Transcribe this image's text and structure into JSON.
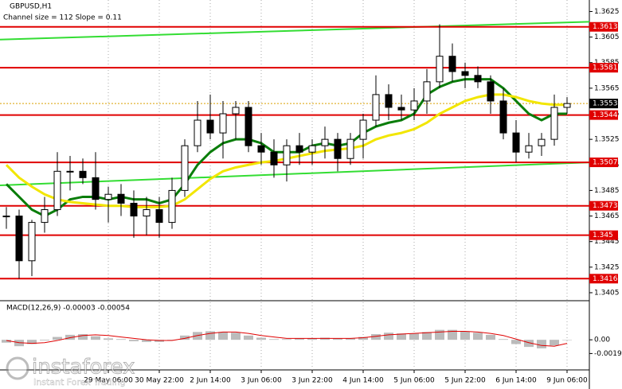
{
  "chart_data": {
    "type": "candlestick",
    "title": "GBPUSD,H1",
    "subtitle": "Channel size = 112 Slope = 0.11",
    "categories": [
      null,
      null,
      null,
      null,
      null,
      null,
      null,
      null,
      "29 May 06:00",
      null,
      null,
      null,
      "30 May 22:00",
      null,
      null,
      null,
      "2 Jun 14:00",
      null,
      null,
      null,
      "3 Jun 06:00",
      null,
      null,
      null,
      "3 Jun 22:00",
      null,
      null,
      null,
      "4 Jun 14:00",
      null,
      null,
      null,
      "5 Jun 06:00",
      null,
      null,
      null,
      "5 Jun 22:00",
      null,
      null,
      null,
      "6 Jun 14:00",
      null,
      null,
      null,
      "9 Jun 06:00"
    ],
    "open": [
      1.3465,
      1.3465,
      1.343,
      1.346,
      1.347,
      1.35,
      1.35,
      1.3495,
      1.3478,
      1.3482,
      1.3475,
      1.3465,
      1.347,
      1.346,
      1.3485,
      1.352,
      1.354,
      1.353,
      1.3545,
      1.355,
      1.352,
      1.3515,
      1.3505,
      1.352,
      1.3515,
      1.352,
      1.3525,
      1.351,
      1.3525,
      1.354,
      1.356,
      1.355,
      1.3548,
      1.3555,
      1.357,
      1.359,
      1.3578,
      1.3575,
      1.357,
      1.3555,
      1.353,
      1.3515,
      1.352,
      1.3525,
      1.355
    ],
    "high": [
      1.3472,
      1.347,
      1.3462,
      1.348,
      1.3515,
      1.3512,
      1.351,
      1.3515,
      1.3488,
      1.349,
      1.3485,
      1.348,
      1.348,
      1.3495,
      1.3525,
      1.3555,
      1.356,
      1.3555,
      1.3555,
      1.3555,
      1.353,
      1.3525,
      1.3525,
      1.353,
      1.3525,
      1.3535,
      1.353,
      1.353,
      1.3545,
      1.3575,
      1.3568,
      1.356,
      1.3565,
      1.358,
      1.3615,
      1.36,
      1.3585,
      1.3582,
      1.3575,
      1.3565,
      1.354,
      1.353,
      1.353,
      1.356,
      1.3558
    ],
    "low": [
      1.3455,
      1.3416,
      1.3418,
      1.3452,
      1.3465,
      1.3485,
      1.349,
      1.347,
      1.346,
      1.3465,
      1.3448,
      1.345,
      1.3448,
      1.3455,
      1.348,
      1.3515,
      1.3525,
      1.351,
      1.3525,
      1.3515,
      1.3505,
      1.3495,
      1.3492,
      1.3505,
      1.3505,
      1.351,
      1.35,
      1.3505,
      1.351,
      1.3535,
      1.354,
      1.354,
      1.354,
      1.3545,
      1.3565,
      1.357,
      1.3565,
      1.3565,
      1.3545,
      1.3525,
      1.3507,
      1.351,
      1.3512,
      1.352,
      1.3545
    ],
    "close": [
      1.3465,
      1.343,
      1.346,
      1.347,
      1.35,
      1.35,
      1.3495,
      1.3478,
      1.3482,
      1.3475,
      1.3465,
      1.347,
      1.346,
      1.3485,
      1.352,
      1.354,
      1.353,
      1.3545,
      1.355,
      1.352,
      1.3515,
      1.3505,
      1.352,
      1.3515,
      1.352,
      1.3525,
      1.351,
      1.3525,
      1.354,
      1.356,
      1.355,
      1.3548,
      1.3555,
      1.357,
      1.359,
      1.3578,
      1.3575,
      1.357,
      1.3555,
      1.353,
      1.3515,
      1.352,
      1.3525,
      1.355,
      1.3553
    ],
    "series": [
      {
        "color": "#0a7d0a",
        "values": [
          1.349,
          1.348,
          1.347,
          1.3465,
          1.347,
          1.3478,
          1.348,
          1.348,
          1.3478,
          1.348,
          1.3478,
          1.3478,
          1.3475,
          1.3478,
          1.349,
          1.3505,
          1.3515,
          1.3522,
          1.3525,
          1.3525,
          1.3522,
          1.3515,
          1.3515,
          1.3515,
          1.352,
          1.3522,
          1.352,
          1.3522,
          1.353,
          1.3535,
          1.3538,
          1.354,
          1.3545,
          1.356,
          1.3566,
          1.357,
          1.3572,
          1.3572,
          1.3572,
          1.3565,
          1.3555,
          1.3545,
          1.354,
          1.3545,
          1.3545
        ]
      },
      {
        "color": "#f2e600",
        "values": [
          1.3505,
          1.3495,
          1.3488,
          1.3482,
          1.3478,
          1.3476,
          1.3475,
          1.3474,
          1.3473,
          1.3473,
          1.3472,
          1.3472,
          1.3472,
          1.3473,
          1.3478,
          1.3486,
          1.3494,
          1.35,
          1.3503,
          1.3505,
          1.3507,
          1.3508,
          1.351,
          1.3512,
          1.3514,
          1.3516,
          1.3517,
          1.3518,
          1.352,
          1.3525,
          1.3528,
          1.353,
          1.3533,
          1.3538,
          1.3545,
          1.355,
          1.3555,
          1.3558,
          1.356,
          1.356,
          1.3558,
          1.3555,
          1.3553,
          1.3552,
          1.3552
        ]
      }
    ],
    "channel": {
      "color": "#33dd33",
      "upper": [
        1.3603,
        1.3617
      ],
      "lower": [
        1.3489,
        1.3507
      ]
    },
    "levels": [
      1.3613,
      1.3581,
      1.3544,
      1.3507,
      1.3473,
      1.345,
      1.3416
    ],
    "level_color": "#e00000",
    "last": 1.3553,
    "ylim": [
      1.34,
      1.3634
    ],
    "yticks": [
      1.3625,
      1.3605,
      1.3585,
      1.3565,
      1.3545,
      1.3525,
      1.3505,
      1.3485,
      1.3465,
      1.3445,
      1.3425,
      1.3405
    ],
    "grid": true,
    "macd": {
      "label": "MACD(12,26,9) -0.00003 -0.00054",
      "histogram": [
        -0.0004,
        -0.0009,
        -0.0006,
        -0.0001,
        0.0004,
        0.0007,
        0.0008,
        0.0005,
        0.0002,
        0.0001,
        -0.0002,
        -0.0003,
        -0.0003,
        0.0,
        0.0006,
        0.0011,
        0.0012,
        0.0011,
        0.001,
        0.0006,
        0.0003,
        0.0001,
        0.0001,
        0.0002,
        0.0002,
        0.0003,
        0.0002,
        0.0002,
        0.0004,
        0.0008,
        0.001,
        0.0009,
        0.0009,
        0.0011,
        0.0014,
        0.0014,
        0.0012,
        0.001,
        0.0007,
        0.0001,
        -0.0006,
        -0.001,
        -0.0012,
        -0.0008,
        0.0
      ],
      "signal": [
        -0.0001,
        -0.0004,
        -0.0005,
        -0.0004,
        -0.0001,
        0.0003,
        0.0006,
        0.0007,
        0.0006,
        0.0004,
        0.0002,
        0.0,
        -0.0001,
        -0.0001,
        0.0002,
        0.0006,
        0.0009,
        0.0011,
        0.0011,
        0.0009,
        0.0006,
        0.0004,
        0.0002,
        0.0002,
        0.0002,
        0.0002,
        0.0002,
        0.0002,
        0.0003,
        0.0005,
        0.0007,
        0.0008,
        0.0009,
        0.001,
        0.0011,
        0.0012,
        0.0012,
        0.0011,
        0.0009,
        0.0006,
        0.0001,
        -0.0004,
        -0.0008,
        -0.0009,
        -0.0005
      ],
      "ylim": [
        -0.0039,
        0.0036
      ],
      "yticks": [
        {
          "value": 0,
          "label": "0.00"
        },
        -0.00193
      ]
    },
    "watermark": {
      "brand": "instaforex",
      "tagline": "Instant Forex Trading"
    }
  }
}
